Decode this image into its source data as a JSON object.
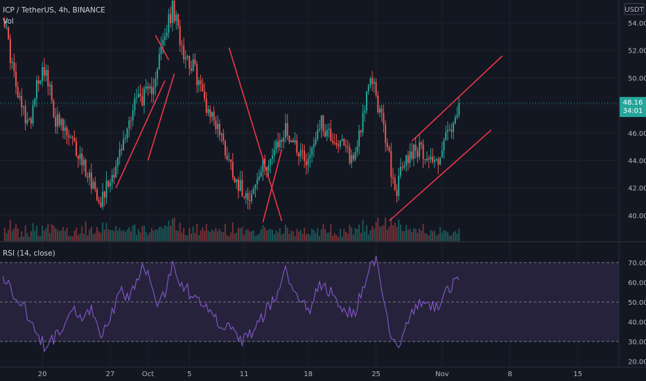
{
  "header": {
    "symbol": "ICP / TetherUS, 4h, BINANCE",
    "volume_label": "Vol",
    "currency": "USDT"
  },
  "price_badge": {
    "price": "48.16",
    "countdown": "34:01"
  },
  "rsi_panel": {
    "label": "RSI (14, close)"
  },
  "colors": {
    "background": "#131722",
    "up": "#26a69a",
    "down": "#ef5350",
    "rsi_line": "#7e57c2",
    "rsi_band": "#2a2440",
    "trendline": "#f23645",
    "grid": "#1e222d",
    "axis_text": "#b2b5be"
  },
  "chart_data": [
    {
      "type": "candlestick",
      "title": "ICP / TetherUS, 4h, BINANCE",
      "x_ticks": [
        "20",
        "27",
        "Oct",
        "5",
        "11",
        "18",
        "25",
        "Nov",
        "8",
        "15"
      ],
      "y_ticks": [
        "54.00",
        "52.00",
        "50.00",
        "48.00",
        "46.00",
        "44.00",
        "42.00",
        "40.00"
      ],
      "ylim": [
        38.3,
        55.4
      ],
      "last_price": 48.16,
      "grid": true,
      "waypoints_close": [
        [
          0,
          54.8
        ],
        [
          8,
          48.5
        ],
        [
          14,
          46.5
        ],
        [
          18,
          49.8
        ],
        [
          22,
          50.8
        ],
        [
          28,
          47.0
        ],
        [
          34,
          45.8
        ],
        [
          40,
          44.5
        ],
        [
          46,
          42.8
        ],
        [
          52,
          41.2
        ],
        [
          58,
          43.0
        ],
        [
          64,
          45.2
        ],
        [
          70,
          48.5
        ],
        [
          78,
          48.8
        ],
        [
          84,
          52.0
        ],
        [
          90,
          55.0
        ],
        [
          96,
          52.0
        ],
        [
          102,
          50.5
        ],
        [
          108,
          48.0
        ],
        [
          114,
          46.5
        ],
        [
          120,
          44.0
        ],
        [
          126,
          42.0
        ],
        [
          132,
          41.5
        ],
        [
          138,
          43.5
        ],
        [
          144,
          44.5
        ],
        [
          150,
          46.2
        ],
        [
          156,
          45.0
        ],
        [
          162,
          44.0
        ],
        [
          168,
          46.8
        ],
        [
          174,
          45.8
        ],
        [
          180,
          45.0
        ],
        [
          186,
          44.0
        ],
        [
          192,
          48.0
        ],
        [
          196,
          50.0
        ],
        [
          200,
          47.5
        ],
        [
          204,
          45.0
        ],
        [
          208,
          41.5
        ],
        [
          212,
          43.5
        ],
        [
          218,
          45.0
        ],
        [
          224,
          44.5
        ],
        [
          230,
          43.8
        ],
        [
          236,
          46.0
        ],
        [
          240,
          46.5
        ],
        [
          242,
          48.16
        ]
      ],
      "volume_scale": [
        0,
        8
      ]
    },
    {
      "type": "line",
      "title": "RSI (14, close)",
      "y_ticks": [
        "70.00",
        "60.00",
        "50.00",
        "40.00",
        "30.00",
        "20.00"
      ],
      "ylim": [
        17,
        77
      ],
      "bands": [
        30,
        50,
        70
      ],
      "series": [
        {
          "waypoints": [
            [
              0,
              62
            ],
            [
              8,
              52
            ],
            [
              14,
              42
            ],
            [
              18,
              33
            ],
            [
              22,
              28
            ],
            [
              26,
              30
            ],
            [
              30,
              35
            ],
            [
              36,
              48
            ],
            [
              42,
              42
            ],
            [
              48,
              46
            ],
            [
              52,
              30
            ],
            [
              58,
              45
            ],
            [
              62,
              55
            ],
            [
              66,
              52
            ],
            [
              70,
              58
            ],
            [
              74,
              68
            ],
            [
              78,
              64
            ],
            [
              82,
              50
            ],
            [
              86,
              55
            ],
            [
              90,
              68
            ],
            [
              96,
              58
            ],
            [
              102,
              52
            ],
            [
              108,
              50
            ],
            [
              114,
              40
            ],
            [
              120,
              36
            ],
            [
              126,
              30
            ],
            [
              132,
              34
            ],
            [
              136,
              40
            ],
            [
              140,
              46
            ],
            [
              146,
              55
            ],
            [
              150,
              66
            ],
            [
              156,
              52
            ],
            [
              162,
              45
            ],
            [
              168,
              58
            ],
            [
              174,
              55
            ],
            [
              180,
              46
            ],
            [
              186,
              44
            ],
            [
              190,
              53
            ],
            [
              194,
              66
            ],
            [
              198,
              70
            ],
            [
              202,
              50
            ],
            [
              206,
              33
            ],
            [
              210,
              28
            ],
            [
              214,
              40
            ],
            [
              218,
              46
            ],
            [
              224,
              50
            ],
            [
              230,
              48
            ],
            [
              236,
              56
            ],
            [
              240,
              60
            ],
            [
              242,
              61
            ]
          ]
        }
      ]
    }
  ]
}
